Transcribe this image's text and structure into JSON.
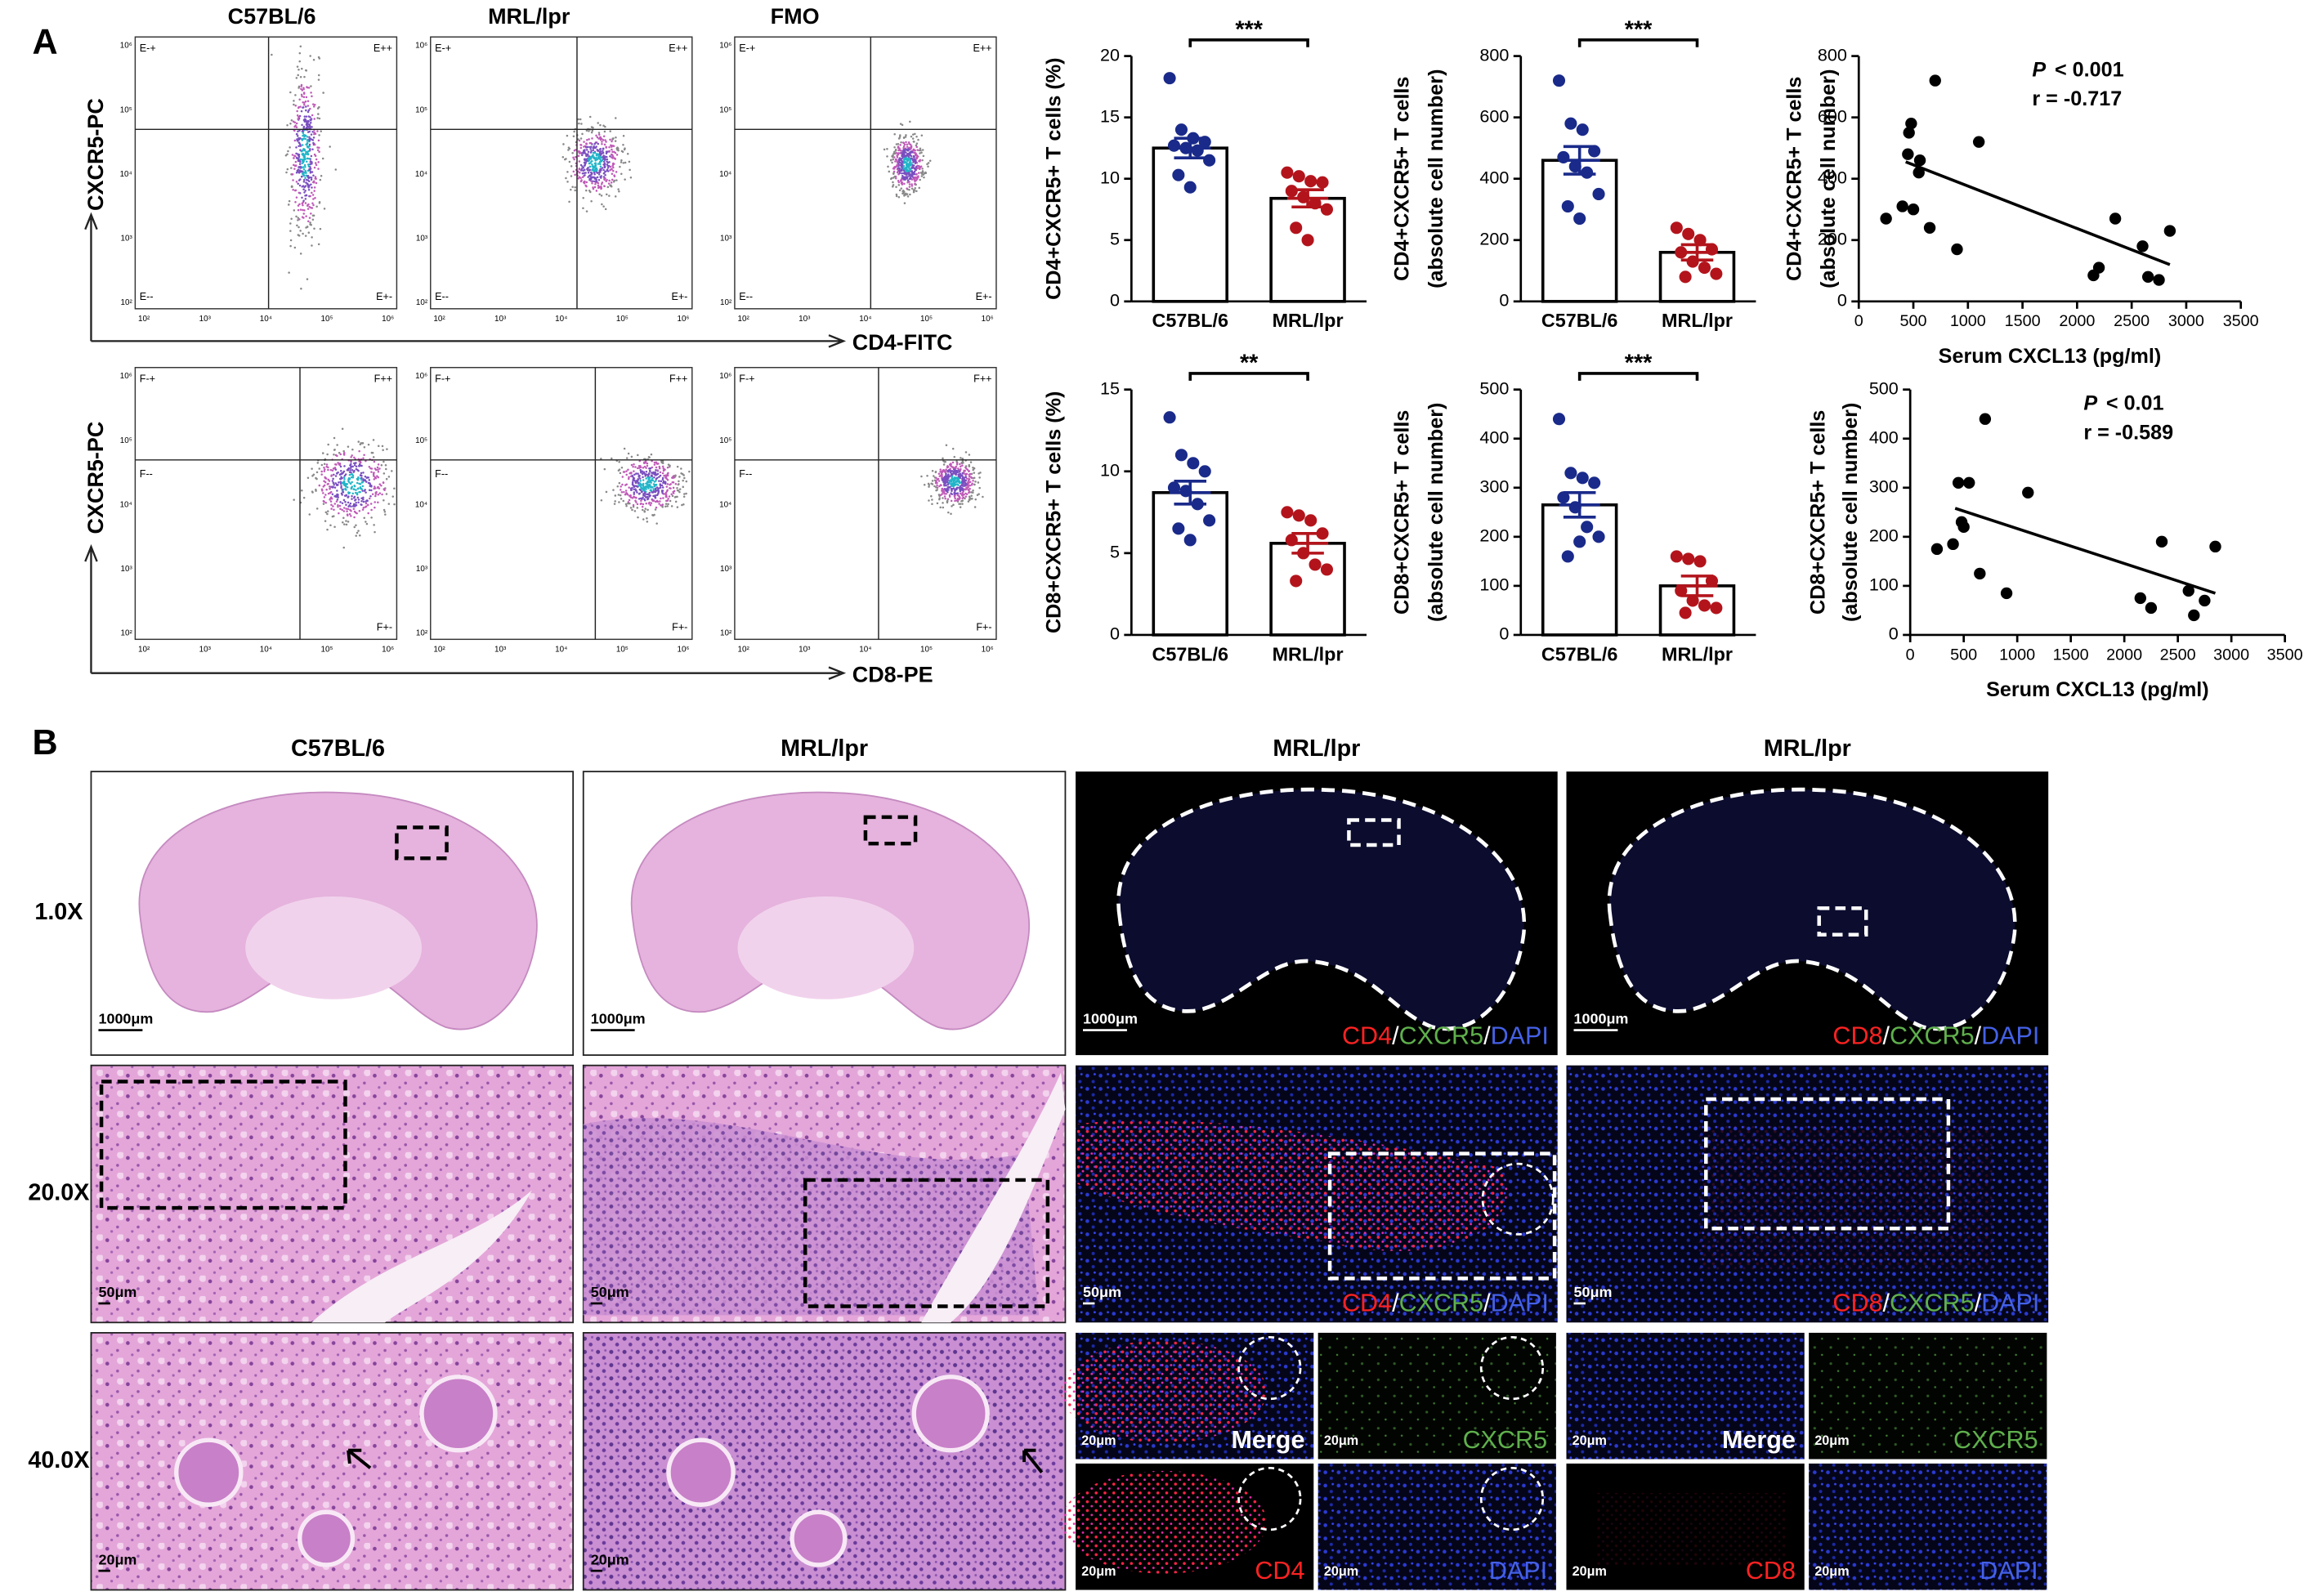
{
  "panel_labels": [
    "A",
    "B"
  ],
  "flow": {
    "columns": [
      "C57BL/6",
      "MRL/lpr",
      "FMO"
    ],
    "axis_ticks": [
      "10²",
      "10³",
      "10⁴",
      "10⁵",
      "10⁶"
    ],
    "rows": [
      {
        "y_label": "CXCR5-PC",
        "x_label": "CD4-FITC",
        "quadrants": [
          "E-+",
          "E++",
          "E--",
          "E+-"
        ]
      },
      {
        "y_label": "CXCR5-PC",
        "x_label": "CD8-PE",
        "quadrants": [
          "F-+",
          "F++",
          "F--",
          "F+-"
        ]
      }
    ]
  },
  "chart_data": [
    {
      "type": "bar",
      "y_label": [
        "CD4+CXCR5+ T cells (%)"
      ],
      "categories": [
        "C57BL/6",
        "MRL/lpr"
      ],
      "values": [
        12.5,
        8.4
      ],
      "errors": [
        0.8,
        0.7
      ],
      "points": [
        [
          18.2,
          14,
          13.3,
          13,
          12.7,
          12.5,
          12.3,
          11.5,
          10.3,
          9.3
        ],
        [
          10.5,
          10.2,
          9.8,
          9.7,
          9,
          8.5,
          8,
          7.5,
          6,
          5
        ]
      ],
      "colors": [
        "#1a2a8a",
        "#b3141c"
      ],
      "ylim": [
        0,
        20
      ],
      "yticks": [
        0,
        5,
        10,
        15,
        20
      ],
      "significance": "***"
    },
    {
      "type": "bar",
      "y_label": [
        "CD4+CXCR5+ T cells",
        "(absolute cell number)"
      ],
      "categories": [
        "C57BL/6",
        "MRL/lpr"
      ],
      "values": [
        460,
        160
      ],
      "errors": [
        45,
        25
      ],
      "points": [
        [
          720,
          580,
          560,
          490,
          470,
          440,
          420,
          350,
          310,
          270
        ],
        [
          240,
          220,
          200,
          170,
          160,
          130,
          110,
          90,
          80
        ]
      ],
      "colors": [
        "#1a2a8a",
        "#b3141c"
      ],
      "ylim": [
        0,
        800
      ],
      "yticks": [
        0,
        200,
        400,
        600,
        800
      ],
      "significance": "***"
    },
    {
      "type": "bar",
      "y_label": [
        "CD8+CXCR5+ T cells (%)"
      ],
      "categories": [
        "C57BL/6",
        "MRL/lpr"
      ],
      "values": [
        8.7,
        5.6
      ],
      "errors": [
        0.7,
        0.6
      ],
      "points": [
        [
          13.3,
          11,
          10.5,
          10,
          9,
          8.8,
          8,
          7,
          6.5,
          5.8
        ],
        [
          7.5,
          7.3,
          7,
          6.2,
          5.8,
          5,
          4.3,
          4,
          3.3
        ]
      ],
      "colors": [
        "#1a2a8a",
        "#b3141c"
      ],
      "ylim": [
        0,
        15
      ],
      "yticks": [
        0,
        5,
        10,
        15
      ],
      "significance": "**"
    },
    {
      "type": "bar",
      "y_label": [
        "CD8+CXCR5+ T cells",
        "(absolute cell number)"
      ],
      "categories": [
        "C57BL/6",
        "MRL/lpr"
      ],
      "values": [
        265,
        100
      ],
      "errors": [
        25,
        20
      ],
      "points": [
        [
          440,
          330,
          320,
          310,
          280,
          260,
          220,
          200,
          160,
          190
        ],
        [
          160,
          155,
          150,
          110,
          90,
          70,
          60,
          55,
          45
        ]
      ],
      "colors": [
        "#1a2a8a",
        "#b3141c"
      ],
      "ylim": [
        0,
        500
      ],
      "yticks": [
        0,
        100,
        200,
        300,
        400,
        500
      ],
      "significance": "***"
    },
    {
      "type": "scatter",
      "x_label": "Serum CXCL13 (pg/ml)",
      "y_label": [
        "CD4+CXCR5+ T cells",
        "(absolute cell number)"
      ],
      "x": [
        250,
        400,
        450,
        460,
        480,
        500,
        550,
        560,
        650,
        700,
        900,
        1100,
        2150,
        2200,
        2350,
        2600,
        2650,
        2750,
        2850
      ],
      "y": [
        270,
        310,
        480,
        550,
        580,
        300,
        420,
        460,
        240,
        720,
        170,
        520,
        85,
        110,
        270,
        180,
        80,
        70,
        230
      ],
      "color": "#000000",
      "xlim": [
        0,
        3500
      ],
      "xticks": [
        0,
        500,
        1000,
        1500,
        2000,
        2500,
        3000,
        3500
      ],
      "ylim": [
        0,
        800
      ],
      "yticks": [
        0,
        200,
        400,
        600,
        800
      ],
      "fit": {
        "x": [
          430,
          2850
        ],
        "y": [
          455,
          120
        ]
      },
      "p_label": "P",
      "p_value": "< 0.001",
      "r_label": "r = -0.717"
    },
    {
      "type": "scatter",
      "x_label": "Serum CXCL13 (pg/ml)",
      "y_label": [
        "CD8+CXCR5+ T cells",
        "(absolute cell number)"
      ],
      "x": [
        250,
        400,
        450,
        480,
        500,
        550,
        650,
        700,
        900,
        1100,
        2150,
        2250,
        2350,
        2600,
        2650,
        2750,
        2850
      ],
      "y": [
        175,
        185,
        310,
        230,
        220,
        310,
        125,
        440,
        85,
        290,
        75,
        55,
        190,
        90,
        40,
        70,
        180
      ],
      "color": "#000000",
      "xlim": [
        0,
        3500
      ],
      "xticks": [
        0,
        500,
        1000,
        1500,
        2000,
        2500,
        3000,
        3500
      ],
      "ylim": [
        0,
        500
      ],
      "yticks": [
        0,
        100,
        200,
        300,
        400,
        500
      ],
      "fit": {
        "x": [
          420,
          2850
        ],
        "y": [
          258,
          85
        ]
      },
      "p_label": "P",
      "p_value": "< 0.01",
      "r_label": "r = -0.589"
    }
  ],
  "histology": {
    "columns": [
      "C57BL/6",
      "MRL/lpr",
      "MRL/lpr",
      "MRL/lpr"
    ],
    "rows": [
      "1.0X",
      "20.0X",
      "40.0X"
    ],
    "scale_bars": [
      "1000μm",
      "50μm",
      "20μm"
    ],
    "separator": "/",
    "stain_labels": [
      [
        "CD4",
        "CXCR5",
        "DAPI"
      ],
      [
        "CD8",
        "CXCR5",
        "DAPI"
      ]
    ],
    "stain_colors": [
      "#ff2222",
      "#5fb04c",
      "#4461e6"
    ],
    "channels": [
      [
        "Merge",
        "CXCR5",
        "CD4",
        "DAPI"
      ],
      [
        "Merge",
        "CXCR5",
        "CD8",
        "DAPI"
      ]
    ]
  }
}
